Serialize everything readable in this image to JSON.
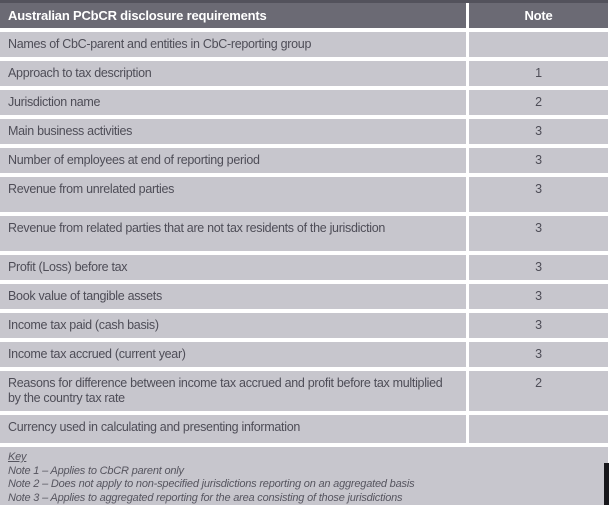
{
  "colors": {
    "header_bg": "#6b6a74",
    "header_text": "#ffffff",
    "row_bg": "#c7c6cd",
    "row_text": "#4e4d57",
    "key_text": "#56555f",
    "divider": "#ffffff"
  },
  "table": {
    "header": {
      "title": "Australian PCbCR disclosure requirements",
      "note_column": "Note"
    },
    "rows": [
      {
        "label": "Names of CbC-parent and entities in CbC-reporting group",
        "note": ""
      },
      {
        "label": "Approach to tax description",
        "note": "1"
      },
      {
        "label": "Jurisdiction name",
        "note": "2"
      },
      {
        "label": "Main business activities",
        "note": "3"
      },
      {
        "label": "Number of employees at end of reporting period",
        "note": "3"
      },
      {
        "label": "Revenue from unrelated parties",
        "note": "3"
      },
      {
        "label": "Revenue from related parties that are not tax residents of the jurisdiction",
        "note": "3"
      },
      {
        "label": "Profit (Loss) before tax",
        "note": "3"
      },
      {
        "label": "Book value of tangible assets",
        "note": "3"
      },
      {
        "label": "Income tax paid (cash basis)",
        "note": "3"
      },
      {
        "label": "Income tax accrued (current year)",
        "note": "3"
      },
      {
        "label": "Reasons for difference between income tax accrued and profit before tax multiplied by the country tax rate",
        "note": "2"
      },
      {
        "label": "Currency used in calculating and presenting information",
        "note": ""
      }
    ],
    "key": {
      "title": "Key",
      "notes": [
        "Note 1 – Applies to CbCR parent only",
        "Note 2 – Does not apply to non-specified jurisdictions reporting on an aggregated basis",
        "Note 3 – Applies to aggregated reporting for the area consisting of those jurisdictions"
      ]
    }
  }
}
